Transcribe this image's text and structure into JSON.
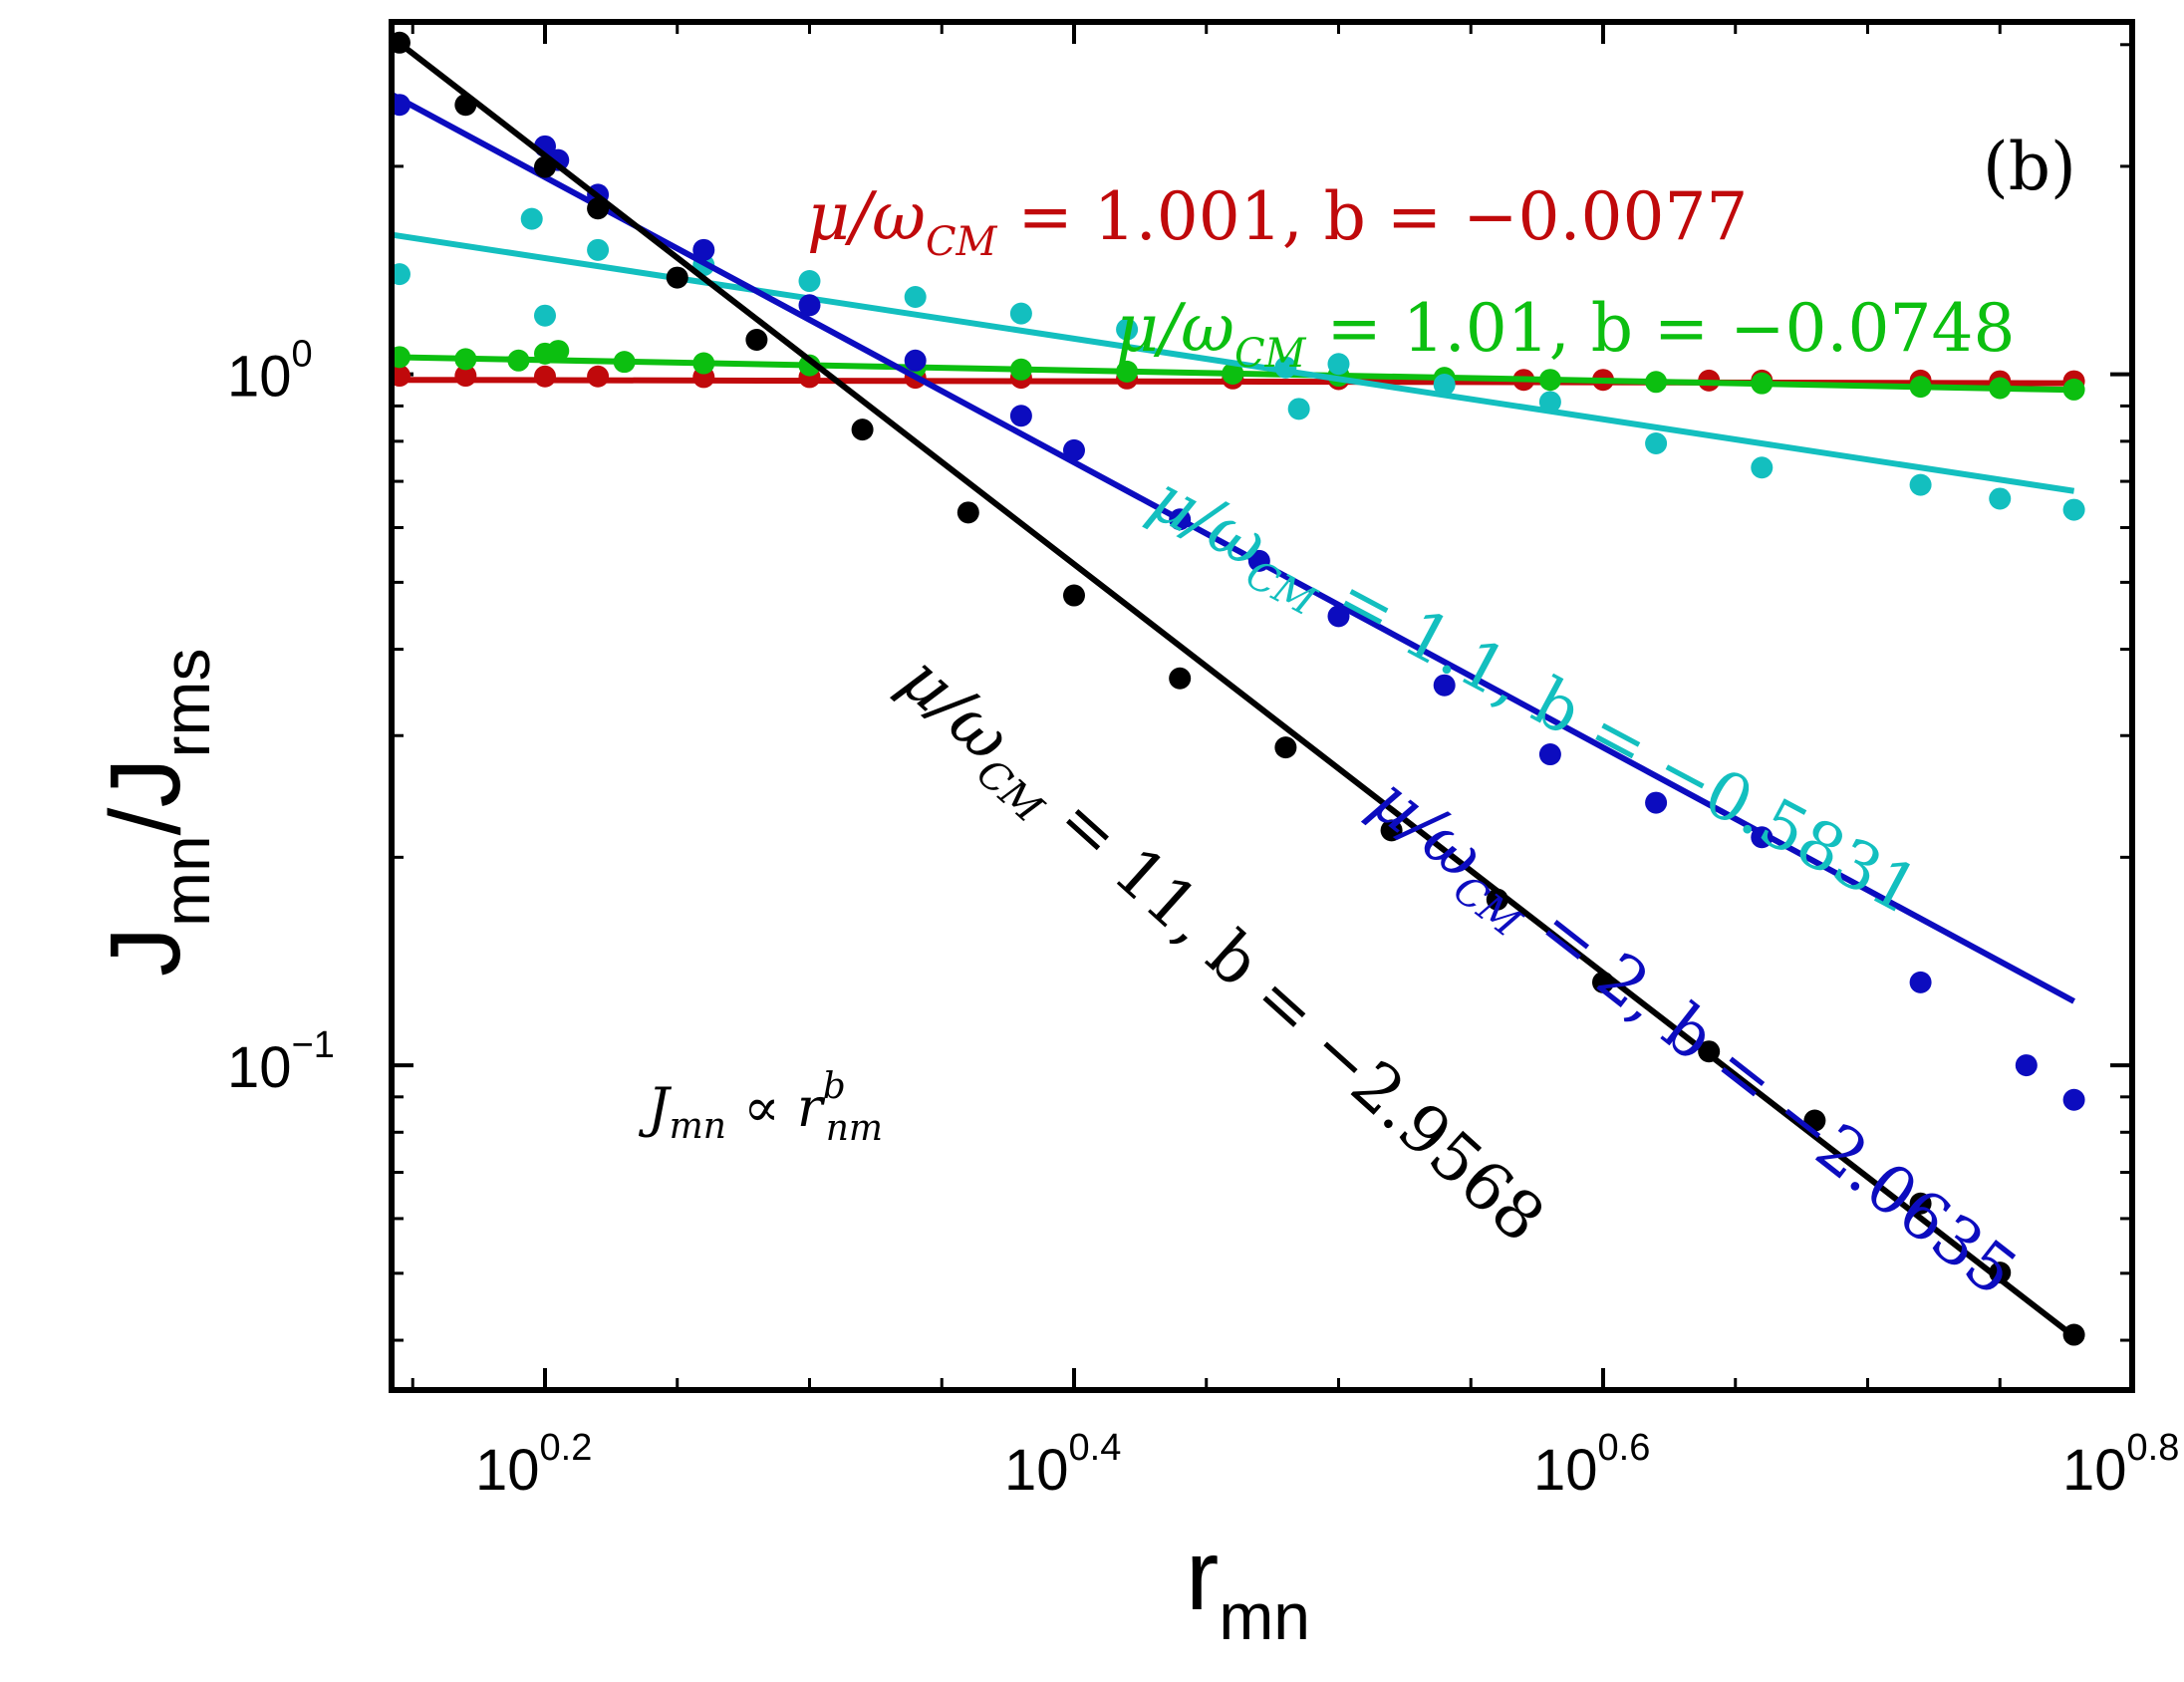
{
  "chart_data": {
    "type": "scatter",
    "scale": "log-log",
    "panel_label": "(b)",
    "xlabel": "r",
    "xlabel_sub": "mn",
    "ylabel": "J",
    "ylabel_sub1": "mn",
    "ylabel_sep": "/J",
    "ylabel_sub2": "rms",
    "xlim_log10": [
      0.142,
      0.8
    ],
    "ylim_log10": [
      -1.47,
      0.51
    ],
    "x_ticks": [
      {
        "base": "10",
        "exp": "0.2",
        "log10": 0.2
      },
      {
        "base": "10",
        "exp": "0.4",
        "log10": 0.4
      },
      {
        "base": "10",
        "exp": "0.6",
        "log10": 0.6
      },
      {
        "base": "10",
        "exp": "0.8",
        "log10": 0.8
      }
    ],
    "y_ticks": [
      {
        "base": "10",
        "exp": "0",
        "log10": 0
      },
      {
        "base": "10",
        "exp": "−1",
        "log10": -1
      }
    ],
    "relation": {
      "main": "J",
      "main_sub": "mn",
      "op": " ∝ ",
      "var": "r",
      "var_sub": "nm",
      "var_sup": "b"
    },
    "series": [
      {
        "name": "μ/ω_CM = 1.001",
        "color": "#c0090b",
        "label": "μ/ω",
        "label_sub": "CM",
        "label_rest": " = 1.001, b = −0.0077",
        "b": -0.0077,
        "fit_log10_y_at_x0": -0.008,
        "fit_x_log10": [
          0.142,
          0.778
        ],
        "points": [
          [
            0.145,
            -0.002
          ],
          [
            0.17,
            -0.002
          ],
          [
            0.2,
            -0.003
          ],
          [
            0.22,
            -0.003
          ],
          [
            0.26,
            -0.004
          ],
          [
            0.3,
            -0.004
          ],
          [
            0.34,
            -0.005
          ],
          [
            0.38,
            -0.005
          ],
          [
            0.42,
            -0.006
          ],
          [
            0.46,
            -0.006
          ],
          [
            0.5,
            -0.007
          ],
          [
            0.54,
            -0.007
          ],
          [
            0.57,
            -0.008
          ],
          [
            0.6,
            -0.008
          ],
          [
            0.64,
            -0.009
          ],
          [
            0.66,
            -0.009
          ],
          [
            0.72,
            -0.009
          ],
          [
            0.75,
            -0.01
          ],
          [
            0.778,
            -0.01
          ]
        ]
      },
      {
        "name": "μ/ω_CM = 1.01",
        "color": "#0cbf10",
        "label": "μ/ω",
        "label_sub": "CM",
        "label_rest": " = 1.01, b = −0.0748",
        "b": -0.0748,
        "fit_log10_y_at_x0": 0.025,
        "fit_x_log10": [
          0.142,
          0.778
        ],
        "points": [
          [
            0.145,
            0.025
          ],
          [
            0.17,
            0.022
          ],
          [
            0.19,
            0.02
          ],
          [
            0.2,
            0.03
          ],
          [
            0.205,
            0.034
          ],
          [
            0.23,
            0.018
          ],
          [
            0.26,
            0.016
          ],
          [
            0.3,
            0.013
          ],
          [
            0.34,
            0.01
          ],
          [
            0.38,
            0.007
          ],
          [
            0.42,
            0.004
          ],
          [
            0.46,
            0.001
          ],
          [
            0.5,
            -0.002
          ],
          [
            0.54,
            -0.005
          ],
          [
            0.58,
            -0.008
          ],
          [
            0.62,
            -0.011
          ],
          [
            0.66,
            -0.013
          ],
          [
            0.72,
            -0.018
          ],
          [
            0.75,
            -0.02
          ],
          [
            0.778,
            -0.022
          ]
        ]
      },
      {
        "name": "μ/ω_CM = 1.1",
        "color": "#13bfbf",
        "label": "μ/ω",
        "label_sub": "CM",
        "label_rest": " = 1.1, b = −0.5831",
        "b": -0.5831,
        "fit_log10_y_at_x0": 0.202,
        "fit_x_log10": [
          0.142,
          0.778
        ],
        "points": [
          [
            0.145,
            0.145
          ],
          [
            0.195,
            0.225
          ],
          [
            0.2,
            0.085
          ],
          [
            0.22,
            0.18
          ],
          [
            0.26,
            0.158
          ],
          [
            0.3,
            0.135
          ],
          [
            0.34,
            0.112
          ],
          [
            0.38,
            0.088
          ],
          [
            0.42,
            0.065
          ],
          [
            0.48,
            0.01
          ],
          [
            0.485,
            -0.05
          ],
          [
            0.5,
            0.015
          ],
          [
            0.54,
            -0.015
          ],
          [
            0.58,
            -0.04
          ],
          [
            0.62,
            -0.1
          ],
          [
            0.66,
            -0.135
          ],
          [
            0.72,
            -0.16
          ],
          [
            0.75,
            -0.18
          ],
          [
            0.778,
            -0.196
          ]
        ]
      },
      {
        "name": "μ/ω_CM = 2",
        "color": "#0c0cbf",
        "label": "μ/ω",
        "label_sub": "CM",
        "label_rest": " = 2, b = −2.0635",
        "b": -2.0635,
        "fit_log10_y_at_x0": 0.405,
        "fit_x_log10": [
          0.142,
          0.778
        ],
        "points": [
          [
            0.145,
            0.39
          ],
          [
            0.2,
            0.33
          ],
          [
            0.205,
            0.31
          ],
          [
            0.22,
            0.26
          ],
          [
            0.26,
            0.18
          ],
          [
            0.3,
            0.1
          ],
          [
            0.34,
            0.02
          ],
          [
            0.38,
            -0.06
          ],
          [
            0.4,
            -0.11
          ],
          [
            0.44,
            -0.21
          ],
          [
            0.47,
            -0.27
          ],
          [
            0.5,
            -0.35
          ],
          [
            0.54,
            -0.45
          ],
          [
            0.58,
            -0.55
          ],
          [
            0.62,
            -0.62
          ],
          [
            0.66,
            -0.67
          ],
          [
            0.72,
            -0.88
          ],
          [
            0.76,
            -1.0
          ],
          [
            0.778,
            -1.05
          ]
        ]
      },
      {
        "name": "μ/ω_CM = 11",
        "color": "#000000",
        "label": "μ/ω",
        "label_sub": "CM",
        "label_rest": " = 11, b = −2.9568",
        "b": -2.9568,
        "fit_log10_y_at_x0": 0.488,
        "fit_x_log10": [
          0.142,
          0.778
        ],
        "points": [
          [
            0.145,
            0.48
          ],
          [
            0.17,
            0.39
          ],
          [
            0.2,
            0.3
          ],
          [
            0.22,
            0.24
          ],
          [
            0.25,
            0.14
          ],
          [
            0.28,
            0.05
          ],
          [
            0.32,
            -0.08
          ],
          [
            0.36,
            -0.2
          ],
          [
            0.4,
            -0.32
          ],
          [
            0.44,
            -0.44
          ],
          [
            0.48,
            -0.54
          ],
          [
            0.52,
            -0.66
          ],
          [
            0.56,
            -0.76
          ],
          [
            0.6,
            -0.88
          ],
          [
            0.64,
            -0.98
          ],
          [
            0.68,
            -1.08
          ],
          [
            0.72,
            -1.2
          ],
          [
            0.75,
            -1.3
          ],
          [
            0.778,
            -1.39
          ]
        ]
      }
    ]
  }
}
